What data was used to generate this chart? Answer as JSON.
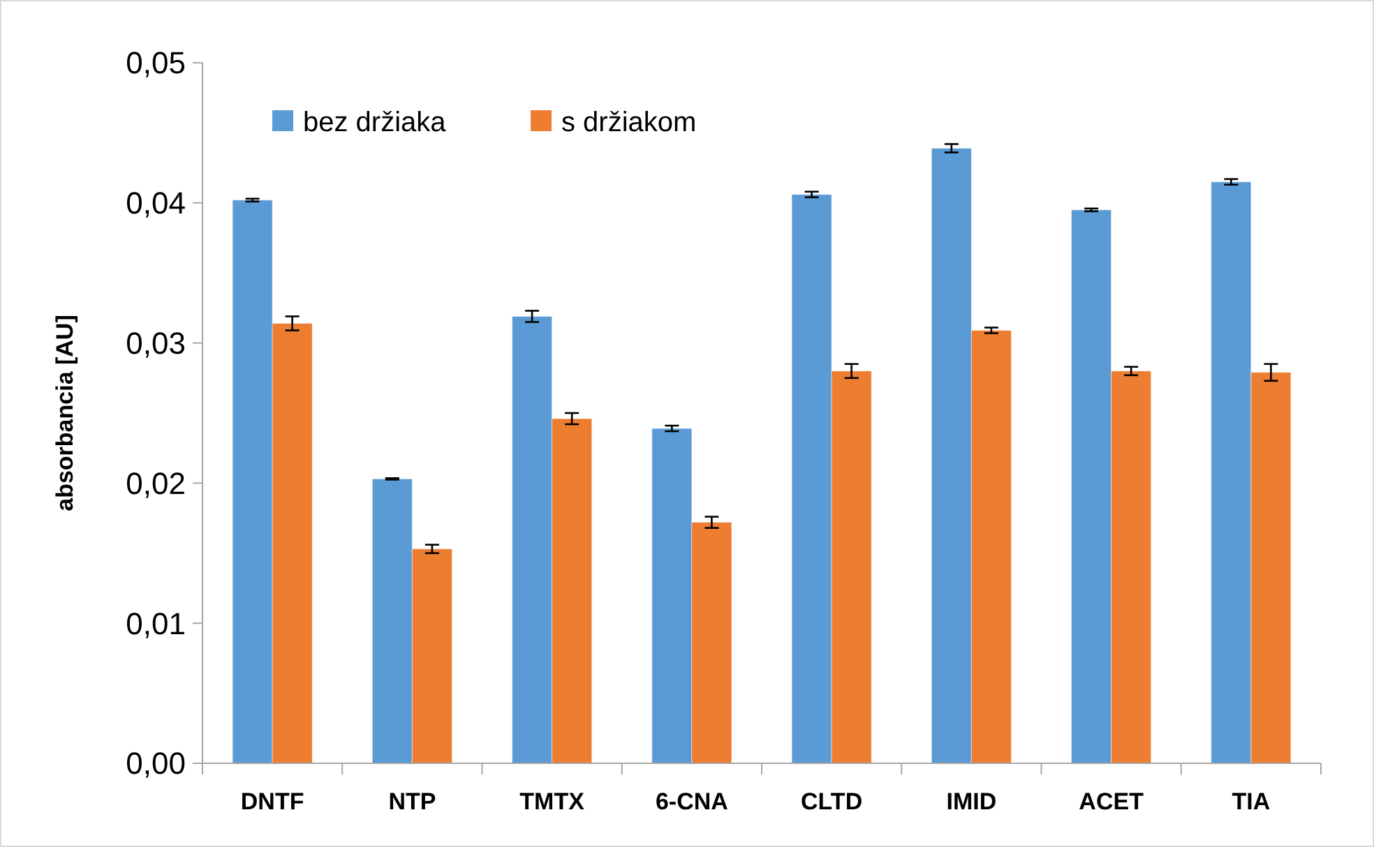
{
  "chart_data": {
    "type": "bar",
    "ylabel": "absorbancia [AU]",
    "categories": [
      "DNTF",
      "NTP",
      "TMTX",
      "6-CNA",
      "CLTD",
      "IMID",
      "ACET",
      "TIA"
    ],
    "series": [
      {
        "name": "bez držiaka",
        "color": "#5b9bd5",
        "values": [
          0.0402,
          0.0203,
          0.0319,
          0.0239,
          0.0406,
          0.0439,
          0.0395,
          0.0415
        ],
        "errors": [
          0.0001,
          5e-05,
          0.0004,
          0.0002,
          0.0002,
          0.0003,
          0.0001,
          0.0002
        ]
      },
      {
        "name": "s držiakom",
        "color": "#ed7d31",
        "values": [
          0.0314,
          0.0153,
          0.0246,
          0.0172,
          0.028,
          0.0309,
          0.028,
          0.0279
        ],
        "errors": [
          0.0005,
          0.0003,
          0.0004,
          0.0004,
          0.0005,
          0.0002,
          0.0003,
          0.0006
        ]
      }
    ],
    "ylim": [
      0,
      0.05
    ],
    "yticks": [
      {
        "value": 0,
        "label": "0,00"
      },
      {
        "value": 0.01,
        "label": "0,01"
      },
      {
        "value": 0.02,
        "label": "0,02"
      },
      {
        "value": 0.03,
        "label": "0,03"
      },
      {
        "value": 0.04,
        "label": "0,04"
      },
      {
        "value": 0.05,
        "label": "0,05"
      }
    ],
    "grid": false,
    "legend": "top left"
  }
}
